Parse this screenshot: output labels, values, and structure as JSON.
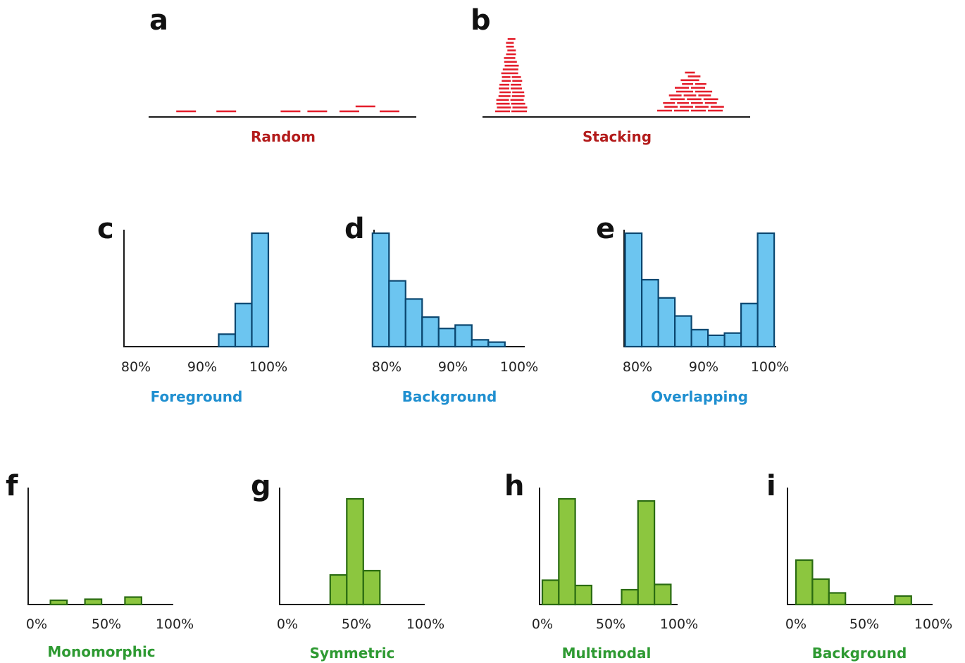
{
  "colors": {
    "read": "#e41e2b",
    "red_caption": "#b31b1b",
    "blue_fill": "#6cc5f0",
    "blue_stroke": "#0b4770",
    "blue_caption": "#1f8fd0",
    "green_fill": "#8cc63f",
    "green_stroke": "#2a6b12",
    "green_caption": "#2e9a32"
  },
  "panels": {
    "a": {
      "letter": "a",
      "caption": "Random"
    },
    "b": {
      "letter": "b",
      "caption": "Stacking"
    },
    "c": {
      "letter": "c",
      "caption": "Foreground",
      "ticks": [
        "80%",
        "90%",
        "100%"
      ]
    },
    "d": {
      "letter": "d",
      "caption": "Background",
      "ticks": [
        "80%",
        "90%",
        "100%"
      ]
    },
    "e": {
      "letter": "e",
      "caption": "Overlapping",
      "ticks": [
        "80%",
        "90%",
        "100%"
      ]
    },
    "f": {
      "letter": "f",
      "caption": "Monomorphic",
      "ticks": [
        "0%",
        "50%",
        "100%"
      ]
    },
    "g": {
      "letter": "g",
      "caption": "Symmetric",
      "ticks": [
        "0%",
        "50%",
        "100%"
      ]
    },
    "h": {
      "letter": "h",
      "caption": "Multimodal",
      "ticks": [
        "0%",
        "50%",
        "100%"
      ]
    },
    "i": {
      "letter": "i",
      "caption": "Background",
      "ticks": [
        "0%",
        "50%",
        "100%"
      ]
    }
  },
  "chart_data": [
    {
      "panel": "c",
      "type": "bar",
      "xlim": [
        80,
        100
      ],
      "bin_width": 2.5,
      "x": [
        93.75,
        96.25,
        98.75
      ],
      "values": [
        0.11,
        0.38,
        1.0
      ]
    },
    {
      "panel": "d",
      "type": "bar",
      "xlim": [
        80,
        100
      ],
      "bin_width": 2.5,
      "x": [
        79.1,
        81.6,
        84.1,
        86.6,
        89.1,
        91.6,
        94.1,
        96.6
      ],
      "values": [
        1.0,
        0.58,
        0.42,
        0.26,
        0.16,
        0.19,
        0.06,
        0.04
      ]
    },
    {
      "panel": "e",
      "type": "bar",
      "xlim": [
        80,
        100
      ],
      "bin_width": 2.5,
      "x": [
        79.4,
        81.9,
        84.4,
        86.9,
        89.4,
        91.9,
        94.4,
        96.9,
        99.4
      ],
      "values": [
        1.0,
        0.59,
        0.43,
        0.27,
        0.15,
        0.1,
        0.12,
        0.38,
        1.0
      ]
    },
    {
      "panel": "f",
      "type": "bar",
      "xlim": [
        0,
        100
      ],
      "bin_width": 12,
      "x": [
        16,
        41,
        70
      ],
      "values": [
        0.04,
        0.05,
        0.07
      ]
    },
    {
      "panel": "g",
      "type": "bar",
      "xlim": [
        0,
        100
      ],
      "bin_width": 12,
      "x": [
        37,
        49,
        61
      ],
      "values": [
        0.28,
        1.0,
        0.32
      ]
    },
    {
      "panel": "h",
      "type": "bar",
      "xlim": [
        0,
        100
      ],
      "bin_width": 12,
      "x": [
        6,
        18,
        30,
        64,
        76,
        88
      ],
      "values": [
        0.23,
        1.0,
        0.18,
        0.14,
        0.98,
        0.19
      ]
    },
    {
      "panel": "i",
      "type": "bar",
      "xlim": [
        0,
        100
      ],
      "bin_width": 12,
      "x": [
        6,
        18,
        30,
        78
      ],
      "values": [
        0.42,
        0.24,
        0.11,
        0.08
      ]
    }
  ],
  "read_diagrams": [
    {
      "panel": "a",
      "reads": [
        [
          0.14,
          0
        ],
        [
          0.29,
          0
        ],
        [
          0.53,
          0
        ],
        [
          0.63,
          0
        ],
        [
          0.75,
          0
        ],
        [
          0.81,
          1
        ],
        [
          0.9,
          0
        ]
      ]
    }
  ]
}
